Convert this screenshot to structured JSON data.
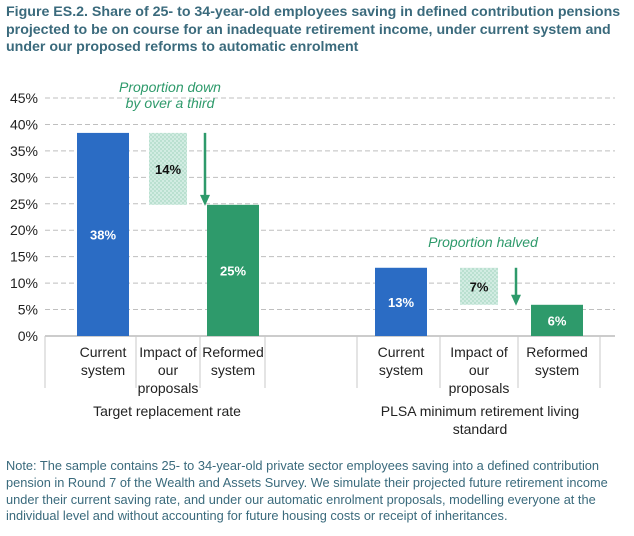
{
  "title": "Figure ES.2. Share of 25- to 34-year-old employees saving in defined contribution pensions projected to be on course for an inadequate retirement income, under current system and under our proposed reforms to automatic enrolment",
  "note": "Note: The sample contains 25- to 34-year-old private sector employees saving into a defined contribution pension in Round 7 of the Wealth and Assets Survey. We simulate their projected future retirement income under their current saving rate, and under our automatic enrolment proposals, modelling everyone at the individual level and without accounting for future housing costs or receipt of inheritances.",
  "colors": {
    "current": "#2b6cc4",
    "reformed": "#2e9a6b",
    "impact_fill": "#d2ece2",
    "arrow": "#2e9a6b",
    "annotation": "#2e9a6b",
    "grid": "#bfbfbf",
    "axis_text": "#222222",
    "bar_label": "#ffffff"
  },
  "chart_data": {
    "type": "bar",
    "ylim": [
      0,
      45
    ],
    "yticks": [
      "0%",
      "5%",
      "10%",
      "15%",
      "20%",
      "25%",
      "30%",
      "35%",
      "40%",
      "45%"
    ],
    "tick_values": [
      0,
      5,
      10,
      15,
      20,
      25,
      30,
      35,
      40,
      45
    ],
    "grid": true,
    "groups": [
      {
        "name": "Target replacement rate",
        "bars": [
          {
            "category": [
              "Current",
              "system"
            ],
            "value": 38.4,
            "label": "38%",
            "kind": "current"
          },
          {
            "category": [
              "Impact of",
              "our",
              "proposals"
            ],
            "from": 38.4,
            "to": 24.8,
            "label": "14%",
            "kind": "impact"
          },
          {
            "category": [
              "Reformed",
              "system"
            ],
            "value": 24.8,
            "label": "25%",
            "kind": "reformed"
          }
        ],
        "annotation": [
          "Proportion down",
          "by over a third"
        ]
      },
      {
        "name": "PLSA minimum retirement living standard",
        "name_lines": [
          "PLSA minimum retirement living",
          "standard"
        ],
        "bars": [
          {
            "category": [
              "Current",
              "system"
            ],
            "value": 12.9,
            "label": "13%",
            "kind": "current"
          },
          {
            "category": [
              "Impact of",
              "our",
              "proposals"
            ],
            "from": 12.9,
            "to": 5.9,
            "label": "7%",
            "kind": "impact"
          },
          {
            "category": [
              "Reformed",
              "system"
            ],
            "value": 5.9,
            "label": "6%",
            "kind": "reformed"
          }
        ],
        "annotation": [
          "Proportion halved"
        ]
      }
    ]
  }
}
